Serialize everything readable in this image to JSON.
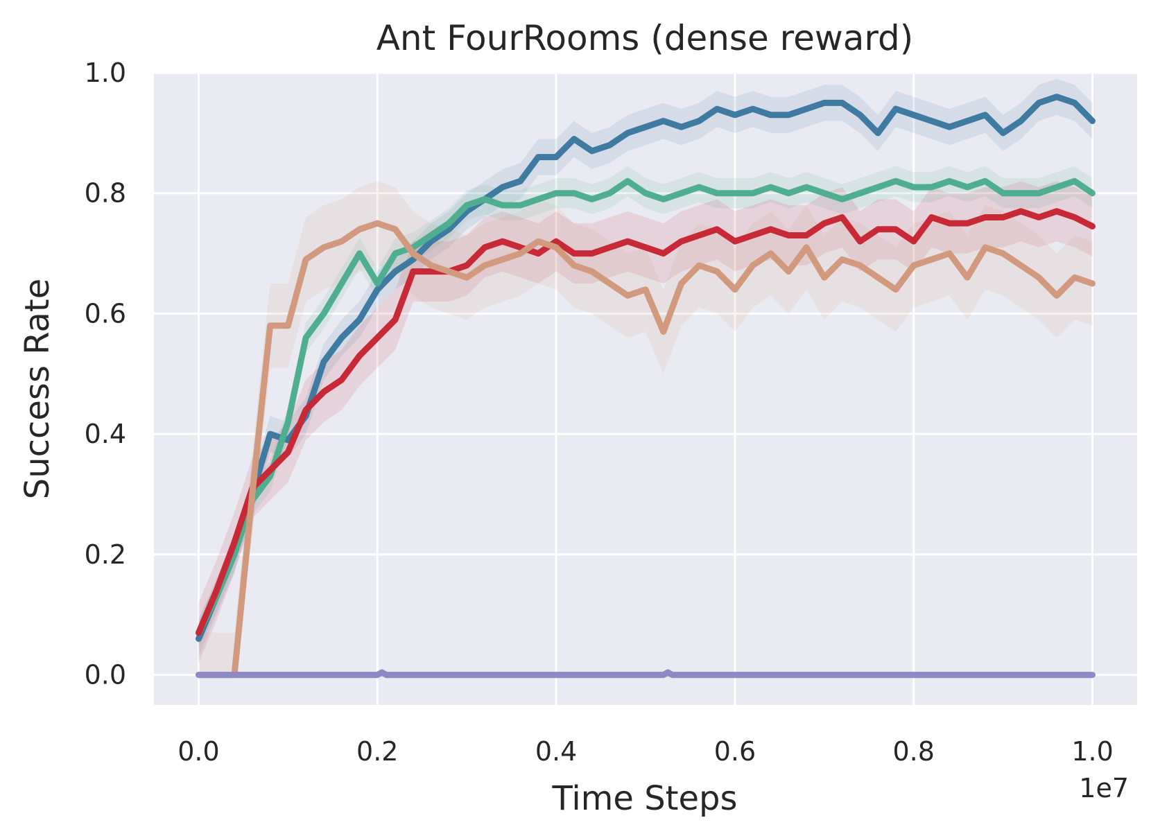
{
  "chart_data": {
    "type": "line",
    "title": "Ant FourRooms (dense reward)",
    "xlabel": "Time Steps",
    "ylabel": "Success Rate",
    "x_offset_label": "1e7",
    "xlim": [
      -0.05,
      1.05
    ],
    "ylim": [
      -0.05,
      1.0
    ],
    "xticks": [
      0.0,
      0.2,
      0.4,
      0.6,
      0.8,
      1.0
    ],
    "xtick_labels": [
      "0.0",
      "0.2",
      "0.4",
      "0.6",
      "0.8",
      "1.0"
    ],
    "yticks": [
      0.0,
      0.2,
      0.4,
      0.6,
      0.8,
      1.0
    ],
    "ytick_labels": [
      "0.0",
      "0.2",
      "0.4",
      "0.6",
      "0.8",
      "1.0"
    ],
    "grid": true,
    "background_color": "#EAEAF2",
    "series": [
      {
        "color": "#3F7AA1",
        "band": 0.03,
        "x": [
          0.0,
          0.02,
          0.04,
          0.06,
          0.08,
          0.1,
          0.12,
          0.14,
          0.16,
          0.18,
          0.2,
          0.22,
          0.24,
          0.26,
          0.28,
          0.3,
          0.32,
          0.34,
          0.36,
          0.38,
          0.4,
          0.42,
          0.44,
          0.46,
          0.48,
          0.5,
          0.52,
          0.54,
          0.56,
          0.58,
          0.6,
          0.62,
          0.64,
          0.66,
          0.68,
          0.7,
          0.72,
          0.74,
          0.76,
          0.78,
          0.8,
          0.82,
          0.84,
          0.86,
          0.88,
          0.9,
          0.92,
          0.94,
          0.96,
          0.98,
          1.0
        ],
        "y": [
          0.06,
          0.13,
          0.2,
          0.3,
          0.4,
          0.39,
          0.43,
          0.52,
          0.56,
          0.59,
          0.64,
          0.67,
          0.69,
          0.72,
          0.74,
          0.77,
          0.79,
          0.81,
          0.82,
          0.86,
          0.86,
          0.89,
          0.87,
          0.88,
          0.9,
          0.91,
          0.92,
          0.91,
          0.92,
          0.94,
          0.93,
          0.94,
          0.93,
          0.93,
          0.94,
          0.95,
          0.95,
          0.93,
          0.9,
          0.94,
          0.93,
          0.92,
          0.91,
          0.92,
          0.93,
          0.9,
          0.92,
          0.95,
          0.96,
          0.95,
          0.92
        ]
      },
      {
        "color": "#4FAE8F",
        "band": 0.025,
        "x": [
          0.0,
          0.02,
          0.04,
          0.06,
          0.08,
          0.1,
          0.12,
          0.14,
          0.16,
          0.18,
          0.2,
          0.22,
          0.24,
          0.26,
          0.28,
          0.3,
          0.32,
          0.34,
          0.36,
          0.38,
          0.4,
          0.42,
          0.44,
          0.46,
          0.48,
          0.5,
          0.52,
          0.54,
          0.56,
          0.58,
          0.6,
          0.62,
          0.64,
          0.66,
          0.68,
          0.7,
          0.72,
          0.74,
          0.76,
          0.78,
          0.8,
          0.82,
          0.84,
          0.86,
          0.88,
          0.9,
          0.92,
          0.94,
          0.96,
          0.98,
          1.0
        ],
        "y": [
          0.07,
          0.13,
          0.2,
          0.29,
          0.33,
          0.42,
          0.56,
          0.6,
          0.65,
          0.7,
          0.65,
          0.7,
          0.71,
          0.73,
          0.75,
          0.78,
          0.79,
          0.78,
          0.78,
          0.79,
          0.8,
          0.8,
          0.79,
          0.8,
          0.82,
          0.8,
          0.79,
          0.8,
          0.81,
          0.8,
          0.8,
          0.8,
          0.81,
          0.8,
          0.81,
          0.8,
          0.79,
          0.8,
          0.81,
          0.82,
          0.81,
          0.81,
          0.82,
          0.81,
          0.82,
          0.8,
          0.8,
          0.8,
          0.81,
          0.82,
          0.8
        ]
      },
      {
        "color": "#C72A36",
        "band": 0.05,
        "x": [
          0.0,
          0.02,
          0.04,
          0.06,
          0.08,
          0.1,
          0.12,
          0.14,
          0.16,
          0.18,
          0.2,
          0.22,
          0.24,
          0.26,
          0.28,
          0.3,
          0.32,
          0.34,
          0.36,
          0.38,
          0.4,
          0.42,
          0.44,
          0.46,
          0.48,
          0.5,
          0.52,
          0.54,
          0.56,
          0.58,
          0.6,
          0.62,
          0.64,
          0.66,
          0.68,
          0.7,
          0.72,
          0.74,
          0.76,
          0.78,
          0.8,
          0.82,
          0.84,
          0.86,
          0.88,
          0.9,
          0.92,
          0.94,
          0.96,
          0.98,
          1.0
        ],
        "y": [
          0.07,
          0.14,
          0.22,
          0.31,
          0.34,
          0.37,
          0.44,
          0.47,
          0.49,
          0.53,
          0.56,
          0.59,
          0.67,
          0.67,
          0.67,
          0.68,
          0.71,
          0.72,
          0.71,
          0.7,
          0.72,
          0.7,
          0.7,
          0.71,
          0.72,
          0.71,
          0.7,
          0.72,
          0.73,
          0.74,
          0.72,
          0.73,
          0.74,
          0.73,
          0.73,
          0.75,
          0.76,
          0.72,
          0.74,
          0.74,
          0.72,
          0.76,
          0.75,
          0.75,
          0.76,
          0.76,
          0.77,
          0.76,
          0.77,
          0.76,
          0.745
        ]
      },
      {
        "color": "#D19A7E",
        "band": 0.07,
        "x": [
          0.0,
          0.02,
          0.04,
          0.06,
          0.08,
          0.1,
          0.12,
          0.14,
          0.16,
          0.18,
          0.2,
          0.22,
          0.24,
          0.26,
          0.28,
          0.3,
          0.32,
          0.34,
          0.36,
          0.38,
          0.4,
          0.42,
          0.44,
          0.46,
          0.48,
          0.5,
          0.52,
          0.54,
          0.56,
          0.58,
          0.6,
          0.62,
          0.64,
          0.66,
          0.68,
          0.7,
          0.72,
          0.74,
          0.76,
          0.78,
          0.8,
          0.82,
          0.84,
          0.86,
          0.88,
          0.9,
          0.92,
          0.94,
          0.96,
          0.98,
          1.0
        ],
        "y": [
          0.0,
          0.0,
          0.0,
          0.3,
          0.58,
          0.58,
          0.69,
          0.71,
          0.72,
          0.74,
          0.75,
          0.74,
          0.7,
          0.68,
          0.67,
          0.66,
          0.68,
          0.69,
          0.7,
          0.72,
          0.71,
          0.68,
          0.67,
          0.65,
          0.63,
          0.64,
          0.57,
          0.65,
          0.68,
          0.67,
          0.64,
          0.68,
          0.7,
          0.67,
          0.71,
          0.66,
          0.69,
          0.68,
          0.66,
          0.64,
          0.68,
          0.69,
          0.7,
          0.66,
          0.71,
          0.7,
          0.68,
          0.66,
          0.63,
          0.66,
          0.65
        ]
      },
      {
        "color": "#8E88C4",
        "band": 0.0,
        "x": [
          0.0,
          0.1,
          0.2,
          0.205,
          0.21,
          0.3,
          0.4,
          0.5,
          0.52,
          0.525,
          0.53,
          0.6,
          0.7,
          0.8,
          0.9,
          1.0
        ],
        "y": [
          0.0,
          0.0,
          0.0,
          0.004,
          0.0,
          0.0,
          0.0,
          0.0,
          0.0,
          0.004,
          0.0,
          0.0,
          0.0,
          0.0,
          0.0,
          0.0
        ]
      }
    ]
  }
}
